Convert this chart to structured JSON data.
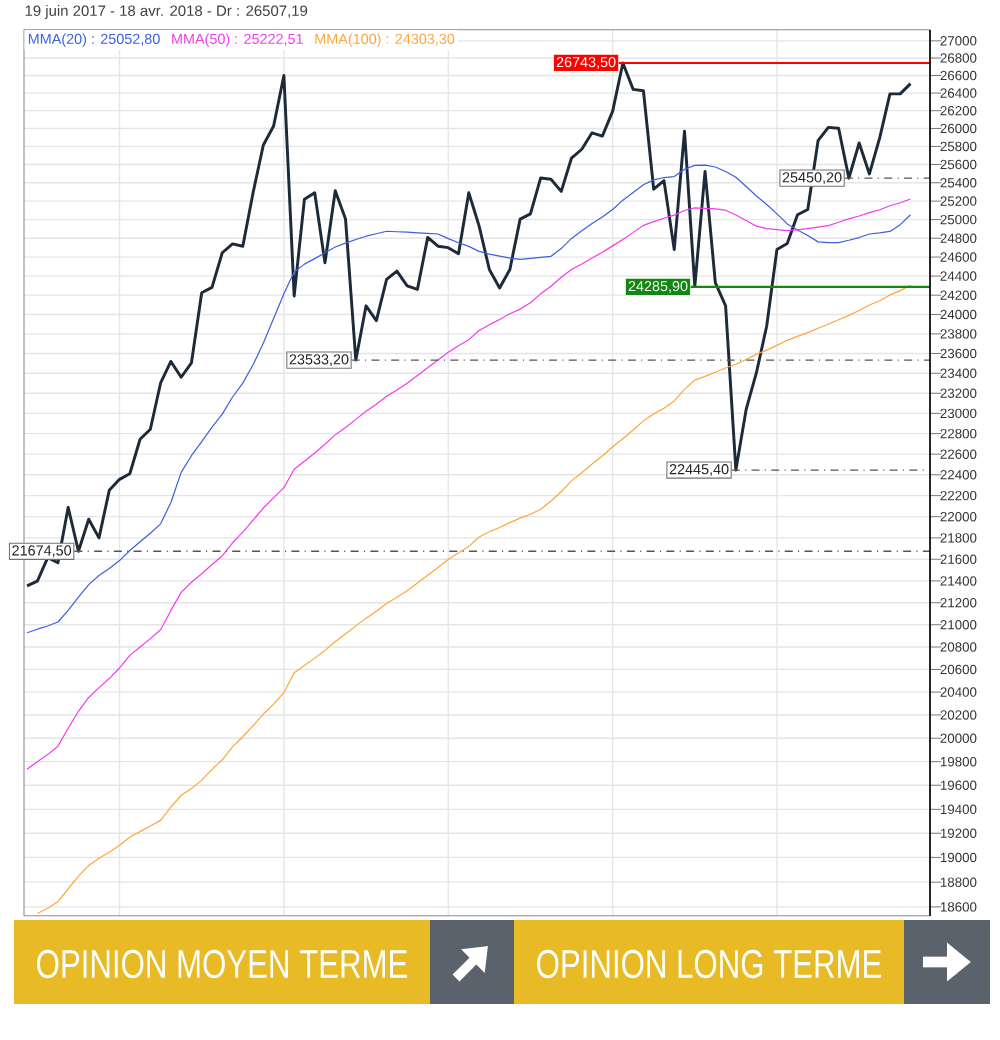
{
  "chart_data": {
    "type": "line",
    "title": "19 juin 2017 - 18 avr. 2018 - Dr : 26507,19",
    "log": true,
    "grid": true,
    "tick_labels": "y",
    "categories": [
      null,
      null,
      null,
      null,
      null,
      null,
      null,
      null,
      null,
      null,
      null,
      null,
      null,
      null,
      null,
      null,
      null,
      null,
      null,
      null,
      null,
      null,
      null,
      null,
      null,
      null,
      null,
      null,
      null,
      null,
      null,
      null,
      null,
      null,
      null,
      null,
      null,
      null,
      null,
      null,
      null,
      null,
      null,
      null,
      null,
      null,
      null,
      null,
      null,
      null,
      null,
      null,
      null,
      null,
      null,
      null,
      null,
      null,
      null,
      null,
      null,
      null,
      null,
      null,
      null,
      null,
      null,
      null,
      null,
      null,
      null,
      null,
      null,
      null,
      null,
      null,
      null,
      null,
      null,
      null,
      null,
      null,
      null,
      null,
      null,
      null,
      null
    ],
    "ylim": [
      18530,
      27130
    ],
    "yticks": [
      {
        "value": 18600,
        "label": "18600"
      },
      {
        "value": 18800,
        "label": "18800"
      },
      {
        "value": 19000,
        "label": "19000"
      },
      {
        "value": 19200,
        "label": "19200"
      },
      {
        "value": 19400,
        "label": "19400"
      },
      {
        "value": 19600,
        "label": "19600"
      },
      {
        "value": 19800,
        "label": "19800"
      },
      {
        "value": 20000,
        "label": "20000"
      },
      {
        "value": 20200,
        "label": "20200"
      },
      {
        "value": 20400,
        "label": "20400"
      },
      {
        "value": 20600,
        "label": "20600"
      },
      {
        "value": 20800,
        "label": "20800"
      },
      {
        "value": 21000,
        "label": "21000"
      },
      {
        "value": 21200,
        "label": "21200"
      },
      {
        "value": 21400,
        "label": "21400"
      },
      {
        "value": 21600,
        "label": "21600"
      },
      {
        "value": 21800,
        "label": "21800"
      },
      {
        "value": 22000,
        "label": "22000"
      },
      {
        "value": 22200,
        "label": "22200"
      },
      {
        "value": 22400,
        "label": "22400"
      },
      {
        "value": 22600,
        "label": "22600"
      },
      {
        "value": 22800,
        "label": "22800"
      },
      {
        "value": 23000,
        "label": "23000"
      },
      {
        "value": 23200,
        "label": "23200"
      },
      {
        "value": 23400,
        "label": "23400"
      },
      {
        "value": 23600,
        "label": "23600"
      },
      {
        "value": 23800,
        "label": "23800"
      },
      {
        "value": 24000,
        "label": "24000"
      },
      {
        "value": 24200,
        "label": "24200"
      },
      {
        "value": 24400,
        "label": "24400"
      },
      {
        "value": 24600,
        "label": "24600"
      },
      {
        "value": 24800,
        "label": "24800"
      },
      {
        "value": 25000,
        "label": "25000"
      },
      {
        "value": 25200,
        "label": "25200"
      },
      {
        "value": 25400,
        "label": "25400"
      },
      {
        "value": 25600,
        "label": "25600"
      },
      {
        "value": 25800,
        "label": "25800"
      },
      {
        "value": 26000,
        "label": "26000"
      },
      {
        "value": 26200,
        "label": "26200"
      },
      {
        "value": 26400,
        "label": "26400"
      },
      {
        "value": 26600,
        "label": "26600"
      },
      {
        "value": 26800,
        "label": "26800"
      },
      {
        "value": 27000,
        "label": "27000"
      }
    ],
    "series": [
      {
        "color": "#1c2a3a",
        "values": [
          21355,
          21398,
          21614,
          21568,
          22088,
          21674.5,
          21976,
          21800,
          22250,
          22356,
          22410,
          22745,
          22843,
          23303,
          23520,
          23360,
          23506,
          24225,
          24281,
          24646,
          24740,
          24715,
          25291,
          25817,
          26028,
          26600,
          24192,
          25221,
          25291,
          24540,
          25313,
          25005,
          23533.2,
          24089,
          23936,
          24365,
          24451,
          24297,
          24260,
          24810,
          24715,
          24700,
          24635,
          25291,
          24932,
          24470,
          24275,
          24470,
          25005,
          25061,
          25452,
          25437,
          25306,
          25671,
          25769,
          25952,
          25915,
          26193,
          26743.5,
          26441,
          26426,
          25329,
          25423,
          24681,
          25969,
          24290,
          25523,
          24330,
          24089,
          22445.4,
          23039,
          23406,
          23882,
          24681,
          24745,
          25053,
          25110,
          25863,
          26012,
          26004,
          25450.2,
          25839,
          25496,
          25896,
          26390,
          26390,
          26507.19
        ]
      },
      {
        "name": "MMA(20) : 25052,80",
        "color": "#3b5fe0",
        "values": [
          20928,
          20960,
          20989,
          21025,
          21130,
          21252,
          21366,
          21450,
          21514,
          21588,
          21682,
          21763,
          21844,
          21932,
          22134,
          22424,
          22584,
          22722,
          22864,
          22992,
          23162,
          23301,
          23485,
          23706,
          23958,
          24215,
          24442,
          24526,
          24584,
          24645,
          24706,
          24748,
          24787,
          24822,
          24848,
          24875,
          24870,
          24865,
          24858,
          24852,
          24846,
          24796,
          24753,
          24713,
          24660,
          24632,
          24611,
          24589,
          24576,
          24587,
          24598,
          24608,
          24691,
          24799,
          24881,
          24959,
          25029,
          25110,
          25210,
          25293,
          25377,
          25431,
          25457,
          25467,
          25548,
          25590,
          25594,
          25572,
          25522,
          25461,
          25359,
          25256,
          25164,
          25062,
          24954,
          24888,
          24829,
          24762,
          24754,
          24754,
          24778,
          24808,
          24846,
          24858,
          24873,
          24946,
          25052.8
        ]
      },
      {
        "name": "MMA(50) : 25222,51",
        "color": "#f03cf0",
        "values": [
          19734,
          19800,
          19860,
          19935,
          20085,
          20232,
          20353,
          20439,
          20519,
          20613,
          20725,
          20800,
          20875,
          20955,
          21130,
          21295,
          21387,
          21466,
          21552,
          21631,
          21754,
          21853,
          21967,
          22082,
          22181,
          22276,
          22453,
          22531,
          22611,
          22696,
          22788,
          22861,
          22940,
          23020,
          23090,
          23169,
          23233,
          23300,
          23378,
          23456,
          23534,
          23612,
          23679,
          23741,
          23835,
          23895,
          23947,
          24008,
          24056,
          24121,
          24214,
          24294,
          24387,
          24468,
          24527,
          24591,
          24650,
          24719,
          24788,
          24863,
          24938,
          24978,
          25014,
          25049,
          25098,
          25127,
          25122,
          25115,
          25102,
          25050,
          24990,
          24930,
          24904,
          24893,
          24882,
          24890,
          24904,
          24919,
          24936,
          24972,
          25008,
          25039,
          25075,
          25107,
          25150,
          25182,
          25222.51
        ]
      },
      {
        "name": "MMA(100) : 24303,30",
        "color": "#ffa53a",
        "values": [
          null,
          18547,
          18588,
          18641,
          18745,
          18849,
          18935,
          18995,
          19044,
          19101,
          19169,
          19214,
          19260,
          19308,
          19415,
          19517,
          19574,
          19644,
          19735,
          19818,
          19928,
          20011,
          20107,
          20208,
          20295,
          20396,
          20571,
          20635,
          20700,
          20769,
          20849,
          20917,
          20990,
          21060,
          21123,
          21193,
          21250,
          21310,
          21381,
          21452,
          21525,
          21598,
          21661,
          21720,
          21809,
          21857,
          21897,
          21944,
          21986,
          22023,
          22070,
          22148,
          22238,
          22341,
          22419,
          22504,
          22582,
          22672,
          22750,
          22835,
          22926,
          22995,
          23051,
          23123,
          23239,
          23332,
          23369,
          23410,
          23454,
          23491,
          23540,
          23591,
          23635,
          23683,
          23734,
          23774,
          23813,
          23858,
          23900,
          23945,
          23991,
          24040,
          24097,
          24142,
          24202,
          24247,
          24303.3
        ]
      }
    ],
    "ref_lines": [
      {
        "axis": "y",
        "value": 26743.5,
        "label": "26743,50",
        "color": "#ff0000",
        "line_style": "solid"
      },
      {
        "axis": "y",
        "value": 24285.9,
        "label": "24285,90",
        "color": "#118811",
        "line_style": "solid"
      },
      {
        "axis": "y",
        "value": 25450.2,
        "label": "25450,20",
        "color": "#555555",
        "line_style": "dotted"
      },
      {
        "axis": "y",
        "value": 23533.2,
        "label": "23533,20",
        "color": "#555555",
        "line_style": "dotted"
      },
      {
        "axis": "y",
        "value": 22445.4,
        "label": "22445,40",
        "color": "#555555",
        "line_style": "dotted"
      },
      {
        "axis": "y",
        "value": 21674.5,
        "label": "21674,50",
        "color": "#555555",
        "line_style": "dotted"
      }
    ],
    "annotations": [
      "OPINION MOYEN TERME",
      "OPINION LONG TERME"
    ]
  }
}
